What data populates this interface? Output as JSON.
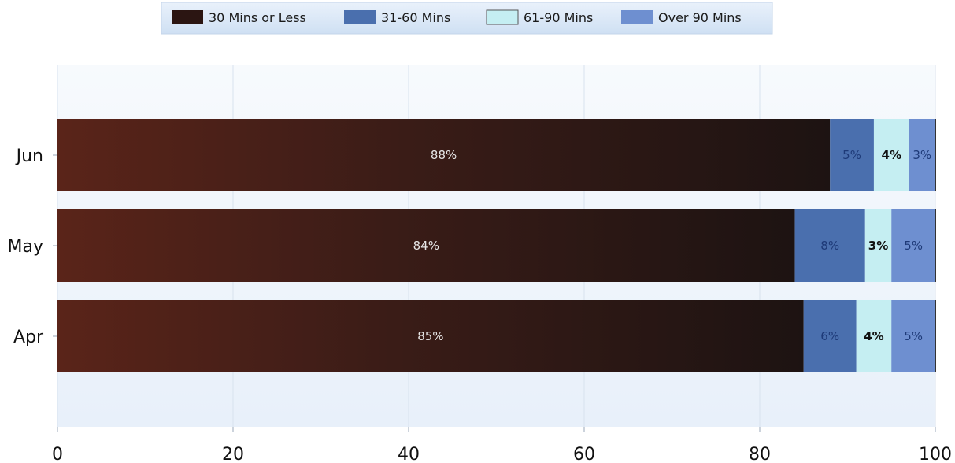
{
  "chart_data": {
    "type": "bar",
    "orientation": "horizontal",
    "stacked": true,
    "categories": [
      "Jun",
      "May",
      "Apr"
    ],
    "series": [
      {
        "name": "30 Mins or Less",
        "values": [
          88,
          84,
          85
        ],
        "labels": [
          "88%",
          "84%",
          "85%"
        ],
        "color": "#2b1512",
        "label_color": "#e6e6e6",
        "label_bold": false
      },
      {
        "name": "31-60 Mins",
        "values": [
          5,
          8,
          6
        ],
        "labels": [
          "5%",
          "8%",
          "6%"
        ],
        "color": "#4a6fae",
        "label_color": "#1e3a78",
        "label_bold": false
      },
      {
        "name": "61-90 Mins",
        "values": [
          4,
          3,
          4
        ],
        "labels": [
          "4%",
          "3%",
          "4%"
        ],
        "color": "#c5eef2",
        "label_color": "#111111",
        "label_bold": true
      },
      {
        "name": "Over 90 Mins",
        "values": [
          3,
          5,
          5
        ],
        "labels": [
          "3%",
          "5%",
          "5%"
        ],
        "color": "#6e8fd0",
        "label_color": "#1e3a78",
        "label_bold": false
      }
    ],
    "xlim": [
      0,
      100
    ],
    "xticks": [
      "0",
      "20",
      "40",
      "60",
      "80",
      "100"
    ],
    "grid": true,
    "legend_position": "top"
  }
}
